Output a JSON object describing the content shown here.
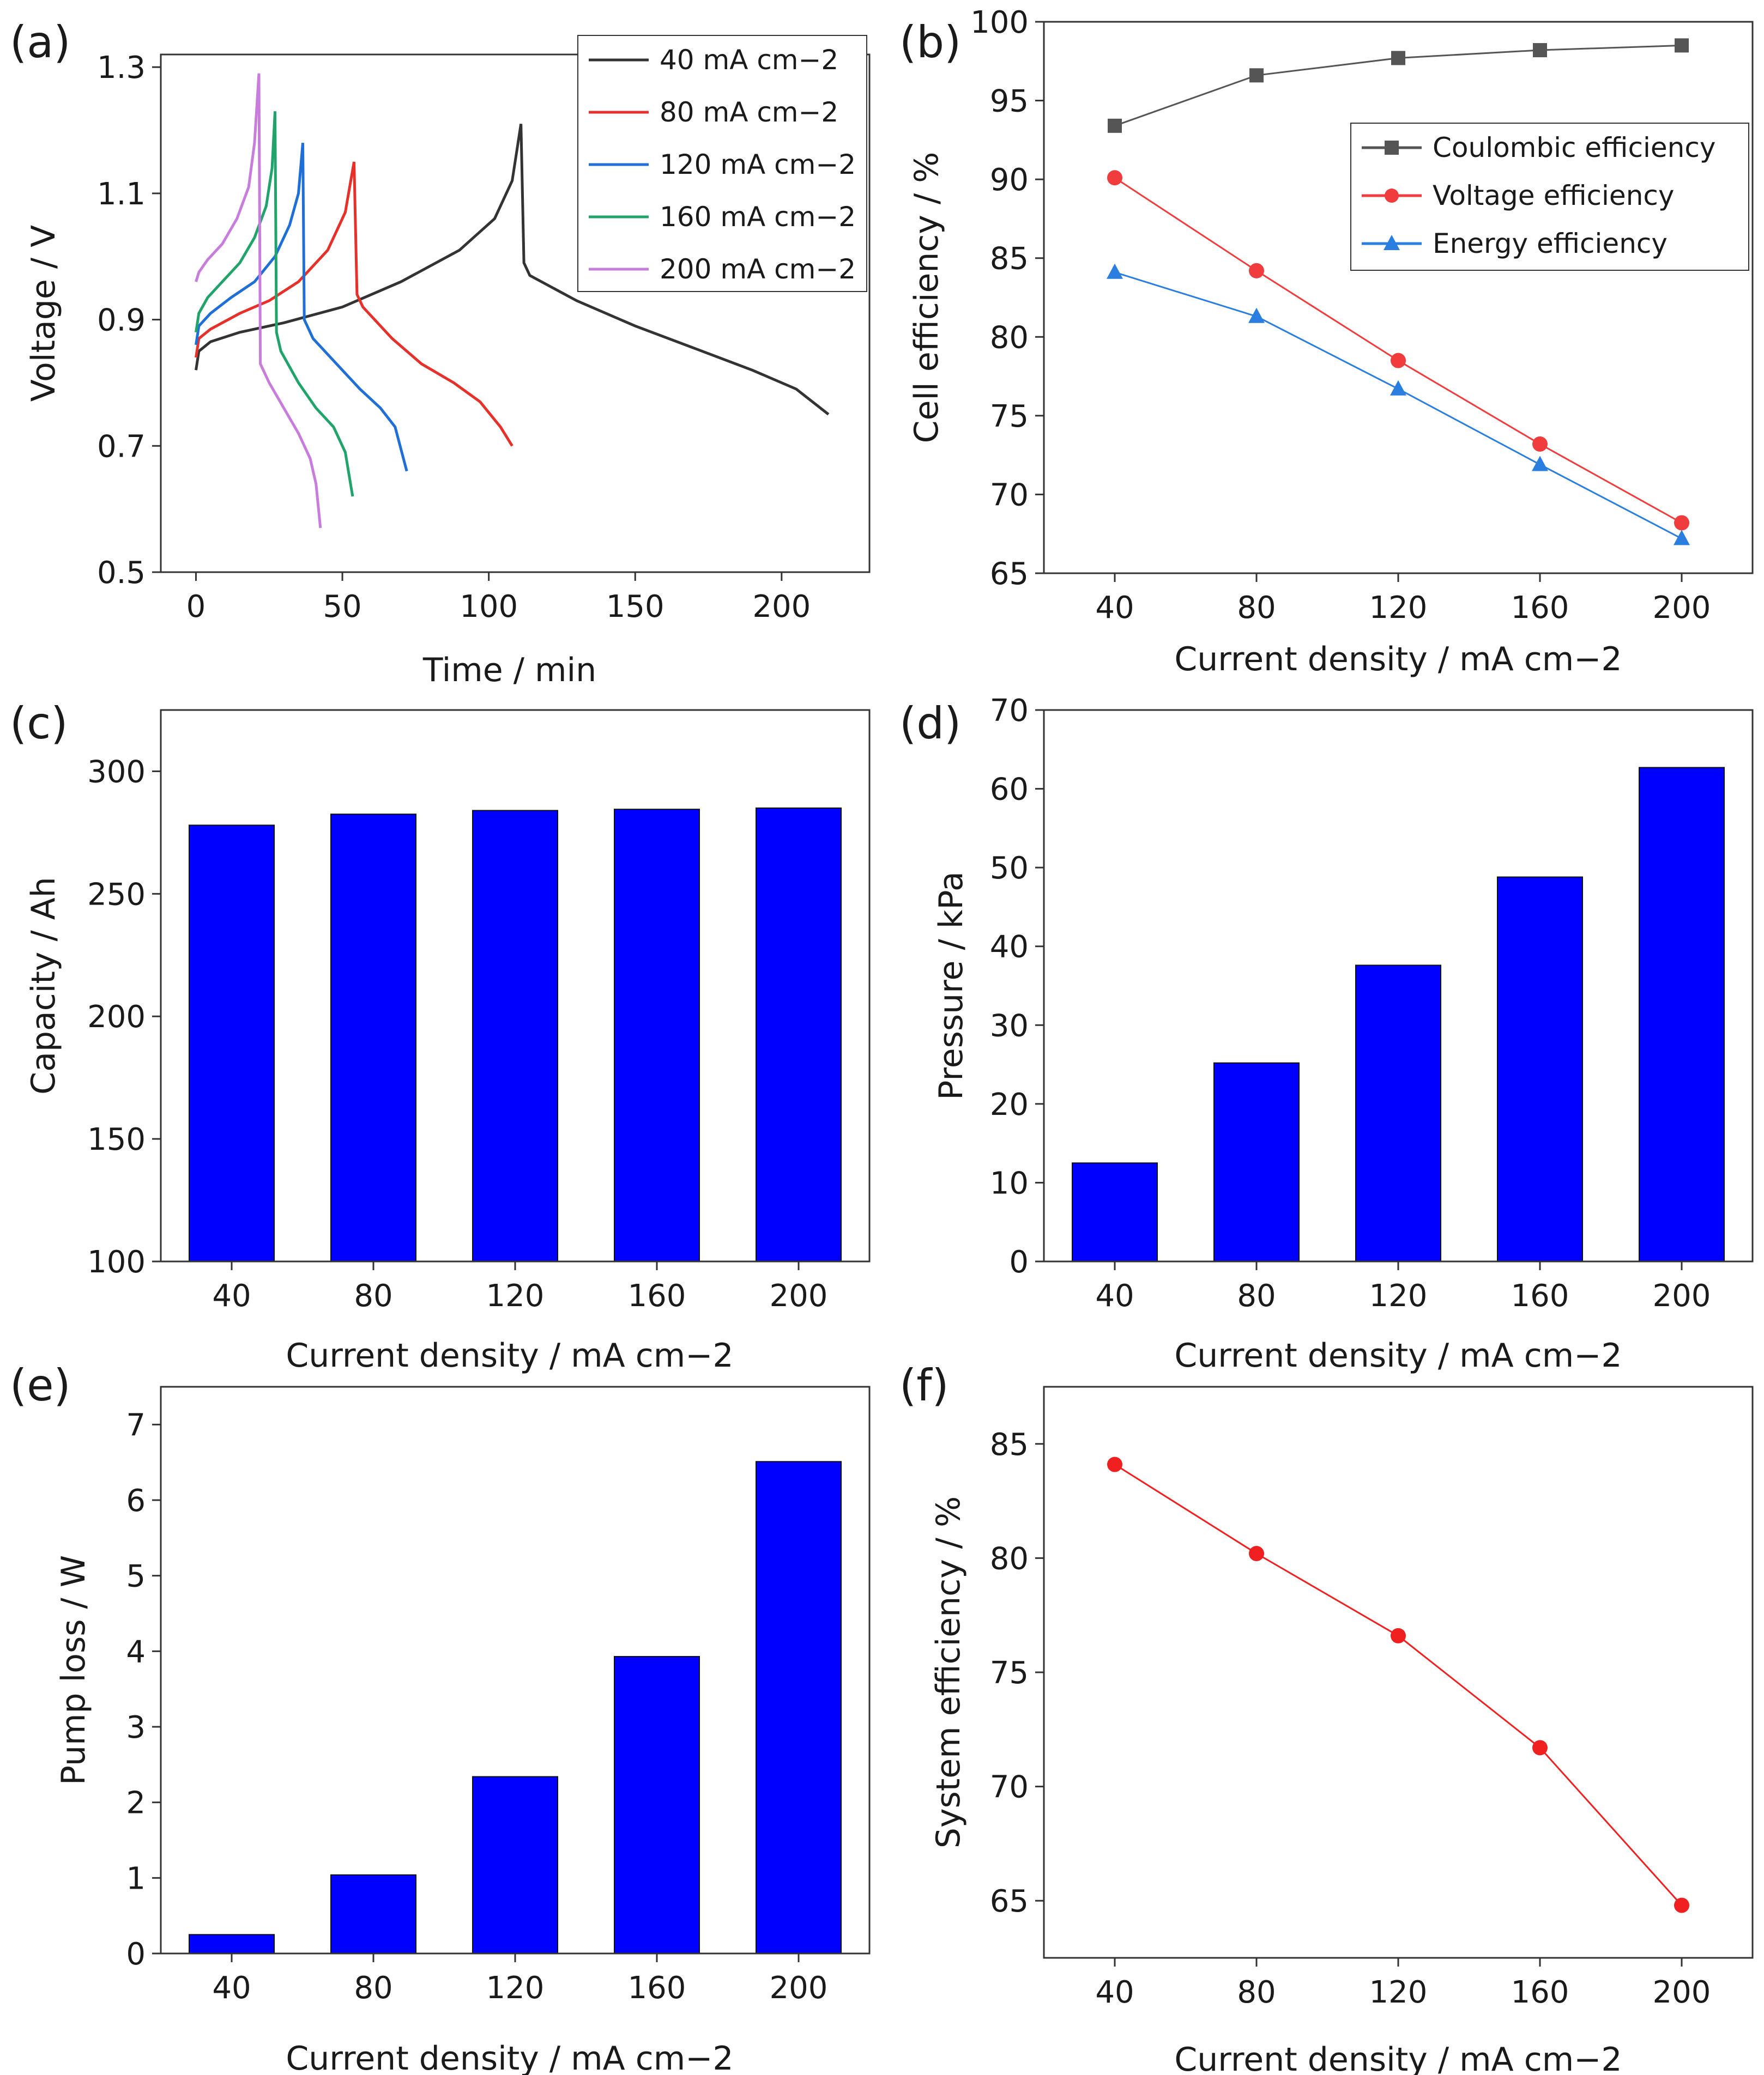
{
  "chart_data": [
    {
      "panel": "(a)",
      "type": "line",
      "xlabel": "Time / min",
      "ylabel": "Voltage / V",
      "xlim": [
        -12,
        230
      ],
      "ylim": [
        0.5,
        1.32
      ],
      "xticks": [
        0,
        50,
        100,
        150,
        200
      ],
      "yticks": [
        0.5,
        0.7,
        0.9,
        1.1,
        1.3
      ],
      "ytick_labels": [
        "0.5",
        "0.7",
        "0.9",
        "1.1",
        "1.3"
      ],
      "legend": "top-right",
      "series": [
        {
          "name": "40 mA cm−2",
          "color": "#333333",
          "points": [
            [
              0,
              0.82
            ],
            [
              1,
              0.85
            ],
            [
              5,
              0.865
            ],
            [
              15,
              0.88
            ],
            [
              30,
              0.895
            ],
            [
              50,
              0.92
            ],
            [
              70,
              0.96
            ],
            [
              90,
              1.01
            ],
            [
              102,
              1.06
            ],
            [
              108,
              1.12
            ],
            [
              111,
              1.21
            ],
            [
              112,
              0.99
            ],
            [
              114,
              0.97
            ],
            [
              130,
              0.93
            ],
            [
              150,
              0.89
            ],
            [
              170,
              0.855
            ],
            [
              190,
              0.82
            ],
            [
              205,
              0.79
            ],
            [
              216,
              0.75
            ]
          ]
        },
        {
          "name": "80 mA cm−2",
          "color": "#e6302a",
          "points": [
            [
              0,
              0.84
            ],
            [
              1,
              0.87
            ],
            [
              5,
              0.885
            ],
            [
              15,
              0.91
            ],
            [
              25,
              0.93
            ],
            [
              35,
              0.96
            ],
            [
              45,
              1.01
            ],
            [
              51,
              1.07
            ],
            [
              54,
              1.15
            ],
            [
              55,
              0.94
            ],
            [
              57,
              0.92
            ],
            [
              67,
              0.87
            ],
            [
              77,
              0.83
            ],
            [
              88,
              0.8
            ],
            [
              97,
              0.77
            ],
            [
              104,
              0.73
            ],
            [
              108,
              0.7
            ]
          ]
        },
        {
          "name": "120 mA cm−2",
          "color": "#1f6fd6",
          "points": [
            [
              0,
              0.86
            ],
            [
              1,
              0.89
            ],
            [
              5,
              0.91
            ],
            [
              12,
              0.935
            ],
            [
              20,
              0.96
            ],
            [
              27,
              1.0
            ],
            [
              32,
              1.05
            ],
            [
              35,
              1.1
            ],
            [
              36.5,
              1.18
            ],
            [
              37,
              0.9
            ],
            [
              40,
              0.87
            ],
            [
              48,
              0.83
            ],
            [
              56,
              0.79
            ],
            [
              63,
              0.76
            ],
            [
              68,
              0.73
            ],
            [
              72,
              0.66
            ]
          ]
        },
        {
          "name": "160 mA cm−2",
          "color": "#21a36b",
          "points": [
            [
              0,
              0.88
            ],
            [
              1,
              0.91
            ],
            [
              4,
              0.935
            ],
            [
              9,
              0.96
            ],
            [
              15,
              0.99
            ],
            [
              20,
              1.03
            ],
            [
              24,
              1.08
            ],
            [
              26,
              1.14
            ],
            [
              27,
              1.23
            ],
            [
              27.5,
              0.88
            ],
            [
              29,
              0.85
            ],
            [
              35,
              0.8
            ],
            [
              41,
              0.76
            ],
            [
              47,
              0.73
            ],
            [
              51,
              0.69
            ],
            [
              53.5,
              0.62
            ]
          ]
        },
        {
          "name": "200 mA cm−2",
          "color": "#c87ddc",
          "points": [
            [
              0,
              0.96
            ],
            [
              1,
              0.975
            ],
            [
              4,
              0.995
            ],
            [
              9,
              1.02
            ],
            [
              14,
              1.06
            ],
            [
              18,
              1.11
            ],
            [
              20,
              1.18
            ],
            [
              21.5,
              1.29
            ],
            [
              22,
              0.83
            ],
            [
              25,
              0.8
            ],
            [
              30,
              0.76
            ],
            [
              35,
              0.72
            ],
            [
              39,
              0.68
            ],
            [
              41,
              0.64
            ],
            [
              42.5,
              0.57
            ]
          ]
        }
      ]
    },
    {
      "panel": "(b)",
      "type": "line",
      "xlabel": "Current density / mA cm−2",
      "ylabel": "Cell efficiency / %",
      "xlim": [
        20,
        220
      ],
      "ylim": [
        65,
        100
      ],
      "xticks": [
        40,
        80,
        120,
        160,
        200
      ],
      "yticks": [
        65,
        70,
        75,
        80,
        85,
        90,
        95,
        100
      ],
      "legend": "upper-right",
      "series": [
        {
          "name": "Coulombic efficiency",
          "color": "#555555",
          "marker": "square",
          "x": [
            40,
            80,
            120,
            160,
            200
          ],
          "values": [
            93.4,
            96.6,
            97.7,
            98.2,
            98.5
          ]
        },
        {
          "name": "Voltage efficiency",
          "color": "#f03c3c",
          "marker": "circle",
          "x": [
            40,
            80,
            120,
            160,
            200
          ],
          "values": [
            90.1,
            84.2,
            78.5,
            73.2,
            68.2
          ]
        },
        {
          "name": "Energy efficiency",
          "color": "#2a7ee0",
          "marker": "triangle",
          "x": [
            40,
            80,
            120,
            160,
            200
          ],
          "values": [
            84.1,
            81.3,
            76.7,
            71.9,
            67.2
          ]
        }
      ]
    },
    {
      "panel": "(c)",
      "type": "bar",
      "xlabel": "Current density / mA cm−2",
      "ylabel": "Capacity / Ah",
      "categories": [
        "40",
        "80",
        "120",
        "160",
        "200"
      ],
      "values": [
        278,
        282.5,
        284,
        284.5,
        285
      ],
      "ylim": [
        100,
        325
      ],
      "yticks": [
        100,
        150,
        200,
        250,
        300
      ],
      "color": "#0000ff"
    },
    {
      "panel": "(d)",
      "type": "bar",
      "xlabel": "Current density / mA cm−2",
      "ylabel": "Pressure / kPa",
      "categories": [
        "40",
        "80",
        "120",
        "160",
        "200"
      ],
      "values": [
        12.5,
        25.2,
        37.6,
        48.8,
        62.7
      ],
      "ylim": [
        0,
        70
      ],
      "yticks": [
        0,
        10,
        20,
        30,
        40,
        50,
        60,
        70
      ],
      "color": "#0000ff"
    },
    {
      "panel": "(e)",
      "type": "bar",
      "xlabel": "Current density / mA cm−2",
      "ylabel": "Pump loss / W",
      "categories": [
        "40",
        "80",
        "120",
        "160",
        "200"
      ],
      "values": [
        0.25,
        1.04,
        2.34,
        3.93,
        6.51
      ],
      "ylim": [
        0,
        7.5
      ],
      "yticks": [
        0,
        1,
        2,
        3,
        4,
        5,
        6,
        7
      ],
      "color": "#0000ff"
    },
    {
      "panel": "(f)",
      "type": "line",
      "xlabel": "Current density / mA cm−2",
      "ylabel": "System efficiency / %",
      "xlim": [
        20,
        220
      ],
      "ylim": [
        62.5,
        87.5
      ],
      "xticks": [
        40,
        80,
        120,
        160,
        200
      ],
      "yticks": [
        65,
        70,
        75,
        80,
        85
      ],
      "series": [
        {
          "name": "System efficiency",
          "color": "#f02020",
          "marker": "circle",
          "x": [
            40,
            80,
            120,
            160,
            200
          ],
          "values": [
            84.1,
            80.2,
            76.6,
            71.7,
            64.8
          ]
        }
      ]
    }
  ]
}
